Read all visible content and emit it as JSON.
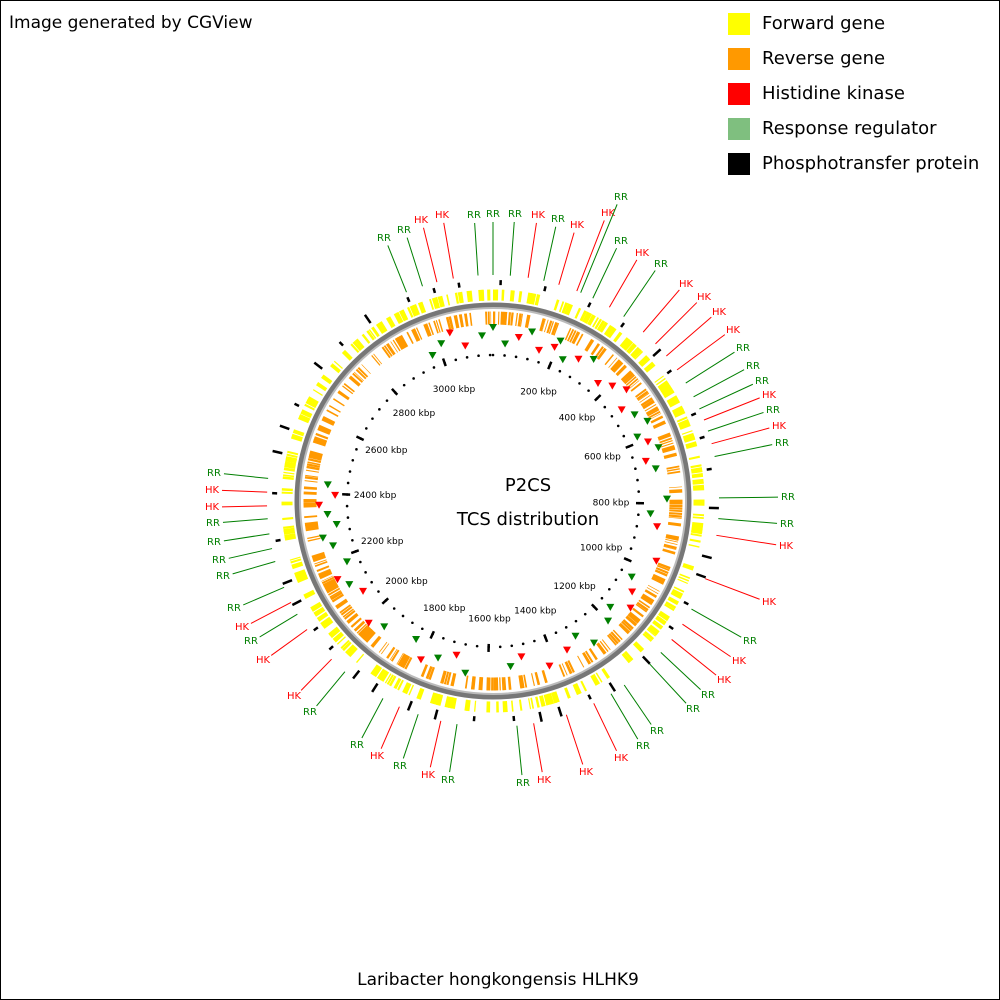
{
  "header": {
    "credit": "Image generated by CGView"
  },
  "legend": [
    {
      "text": "Forward gene",
      "color": "#ffff00"
    },
    {
      "text": "Reverse gene",
      "color": "#ff9900"
    },
    {
      "text": "Histidine kinase",
      "color": "#ff0000"
    },
    {
      "text": "Response regulator",
      "color": "#7fbf7f"
    },
    {
      "text": "Phosphotransfer protein",
      "color": "#000000"
    }
  ],
  "center": {
    "title": "P2CS",
    "subtitle": "TCS distribution"
  },
  "ruler": [
    "200 kbp",
    "400 kbp",
    "600 kbp",
    "800 kbp",
    "1000 kbp",
    "1200 kbp",
    "1400 kbp",
    "1600 kbp",
    "1800 kbp",
    "2000 kbp",
    "2200 kbp",
    "2400 kbp",
    "2600 kbp",
    "2800 kbp",
    "3000 kbp"
  ],
  "labels": [
    {
      "text": "RR",
      "color": "#007f00"
    },
    {
      "text": "RR",
      "color": "#007f00"
    },
    {
      "text": "HK",
      "color": "#ff0000"
    },
    {
      "text": "HK",
      "color": "#ff0000"
    },
    {
      "text": "RR",
      "color": "#007f00"
    },
    {
      "text": "RR",
      "color": "#007f00"
    },
    {
      "text": "RR",
      "color": "#007f00"
    },
    {
      "text": "HK",
      "color": "#ff0000"
    },
    {
      "text": "RR",
      "color": "#007f00"
    },
    {
      "text": "HK",
      "color": "#ff0000"
    },
    {
      "text": "HK",
      "color": "#ff0000"
    },
    {
      "text": "RR",
      "color": "#007f00"
    },
    {
      "text": "RR",
      "color": "#007f00"
    },
    {
      "text": "HK",
      "color": "#ff0000"
    },
    {
      "text": "RR",
      "color": "#007f00"
    },
    {
      "text": "HK",
      "color": "#ff0000"
    },
    {
      "text": "HK",
      "color": "#ff0000"
    },
    {
      "text": "HK",
      "color": "#ff0000"
    },
    {
      "text": "HK",
      "color": "#ff0000"
    },
    {
      "text": "RR",
      "color": "#007f00"
    },
    {
      "text": "RR",
      "color": "#007f00"
    },
    {
      "text": "RR",
      "color": "#007f00"
    },
    {
      "text": "HK",
      "color": "#ff0000"
    },
    {
      "text": "RR",
      "color": "#007f00"
    },
    {
      "text": "HK",
      "color": "#ff0000"
    },
    {
      "text": "RR",
      "color": "#007f00"
    },
    {
      "text": "RR",
      "color": "#007f00"
    },
    {
      "text": "RR",
      "color": "#007f00"
    },
    {
      "text": "HK",
      "color": "#ff0000"
    },
    {
      "text": "HK",
      "color": "#ff0000"
    },
    {
      "text": "RR",
      "color": "#007f00"
    },
    {
      "text": "HK",
      "color": "#ff0000"
    },
    {
      "text": "HK",
      "color": "#ff0000"
    },
    {
      "text": "RR",
      "color": "#007f00"
    },
    {
      "text": "RR",
      "color": "#007f00"
    },
    {
      "text": "RR",
      "color": "#007f00"
    },
    {
      "text": "RR",
      "color": "#007f00"
    },
    {
      "text": "HK",
      "color": "#ff0000"
    },
    {
      "text": "HK",
      "color": "#ff0000"
    },
    {
      "text": "HK",
      "color": "#ff0000"
    },
    {
      "text": "RR",
      "color": "#007f00"
    },
    {
      "text": "RR",
      "color": "#007f00"
    },
    {
      "text": "HK",
      "color": "#ff0000"
    },
    {
      "text": "RR",
      "color": "#007f00"
    },
    {
      "text": "HK",
      "color": "#ff0000"
    },
    {
      "text": "RR",
      "color": "#007f00"
    },
    {
      "text": "RR",
      "color": "#007f00"
    },
    {
      "text": "HK",
      "color": "#ff0000"
    },
    {
      "text": "HK",
      "color": "#ff0000"
    },
    {
      "text": "RR",
      "color": "#007f00"
    },
    {
      "text": "HK",
      "color": "#ff0000"
    },
    {
      "text": "RR",
      "color": "#007f00"
    },
    {
      "text": "RR",
      "color": "#007f00"
    },
    {
      "text": "RR",
      "color": "#007f00"
    },
    {
      "text": "RR",
      "color": "#007f00"
    },
    {
      "text": "RR",
      "color": "#007f00"
    },
    {
      "text": "HK",
      "color": "#ff0000"
    },
    {
      "text": "HK",
      "color": "#ff0000"
    },
    {
      "text": "RR",
      "color": "#007f00"
    }
  ],
  "footer": {
    "organism": "Laribacter hongkongensis HLHK9"
  }
}
